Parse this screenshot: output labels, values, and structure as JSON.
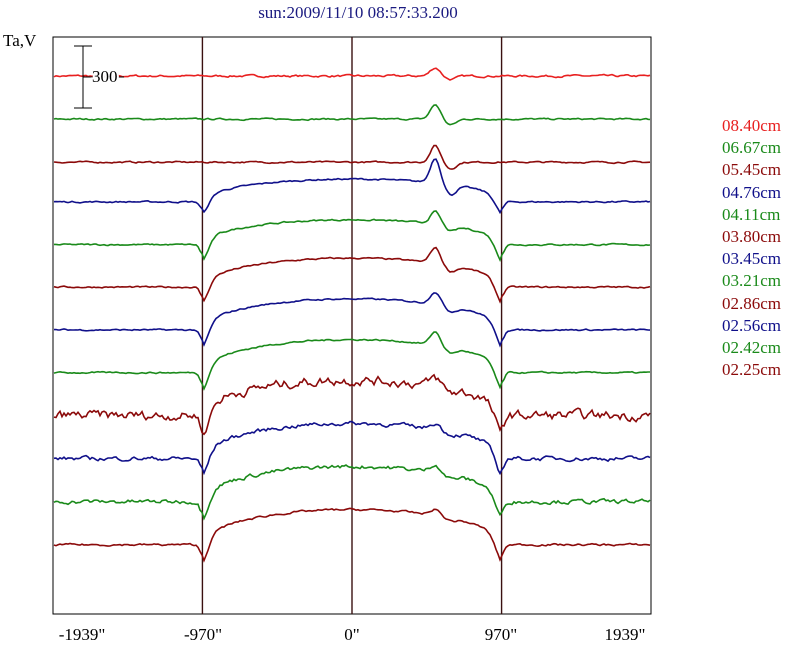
{
  "title": "sun:2009/11/10 08:57:33.200",
  "chart_data": {
    "type": "line",
    "title": "sun:2009/11/10 08:57:33.200",
    "ylabel": "Ta,V",
    "scale_bar_label": "300",
    "xlabel": "",
    "xlim": [
      -1939,
      1939
    ],
    "x_ticks": [
      -1939,
      -970,
      0,
      970,
      1939
    ],
    "x_tick_labels": [
      "-1939\"",
      "-970\"",
      "0\"",
      "970\"",
      "1939\""
    ],
    "vertical_lines": [
      -970,
      0,
      970
    ],
    "grid": false,
    "legend_position": "right",
    "series": [
      {
        "name": "08.40cm",
        "color": "#e82020",
        "disk_rise": 0,
        "limb_drop": 0,
        "active_peak": 40,
        "noise": 0.2
      },
      {
        "name": "06.67cm",
        "color": "#1a8a1a",
        "disk_rise": 0,
        "limb_drop": 0,
        "active_peak": 70,
        "noise": 0.15
      },
      {
        "name": "05.45cm",
        "color": "#8b0a0a",
        "disk_rise": 0,
        "limb_drop": 0,
        "active_peak": 80,
        "noise": 0.15
      },
      {
        "name": "04.76cm",
        "color": "#10108a",
        "disk_rise": 110,
        "limb_drop": 70,
        "active_peak": 120,
        "noise": 0.15
      },
      {
        "name": "04.11cm",
        "color": "#1a8a1a",
        "disk_rise": 120,
        "limb_drop": 90,
        "active_peak": 60,
        "noise": 0.15
      },
      {
        "name": "03.80cm",
        "color": "#8b0a0a",
        "disk_rise": 140,
        "limb_drop": 90,
        "active_peak": 75,
        "noise": 0.15
      },
      {
        "name": "03.45cm",
        "color": "#10108a",
        "disk_rise": 150,
        "limb_drop": 100,
        "active_peak": 60,
        "noise": 0.15
      },
      {
        "name": "03.21cm",
        "color": "#1a8a1a",
        "disk_rise": 160,
        "limb_drop": 100,
        "active_peak": 65,
        "noise": 0.15
      },
      {
        "name": "02.86cm",
        "color": "#8b0a0a",
        "disk_rise": 170,
        "limb_drop": 120,
        "active_peak": 40,
        "noise": 0.9
      },
      {
        "name": "02.56cm",
        "color": "#10108a",
        "disk_rise": 170,
        "limb_drop": 100,
        "active_peak": 30,
        "noise": 0.4
      },
      {
        "name": "02.42cm",
        "color": "#1a8a1a",
        "disk_rise": 170,
        "limb_drop": 100,
        "active_peak": 40,
        "noise": 0.4
      },
      {
        "name": "02.25cm",
        "color": "#8b0a0a",
        "disk_rise": 170,
        "limb_drop": 100,
        "active_peak": 30,
        "noise": 0.2
      }
    ]
  }
}
